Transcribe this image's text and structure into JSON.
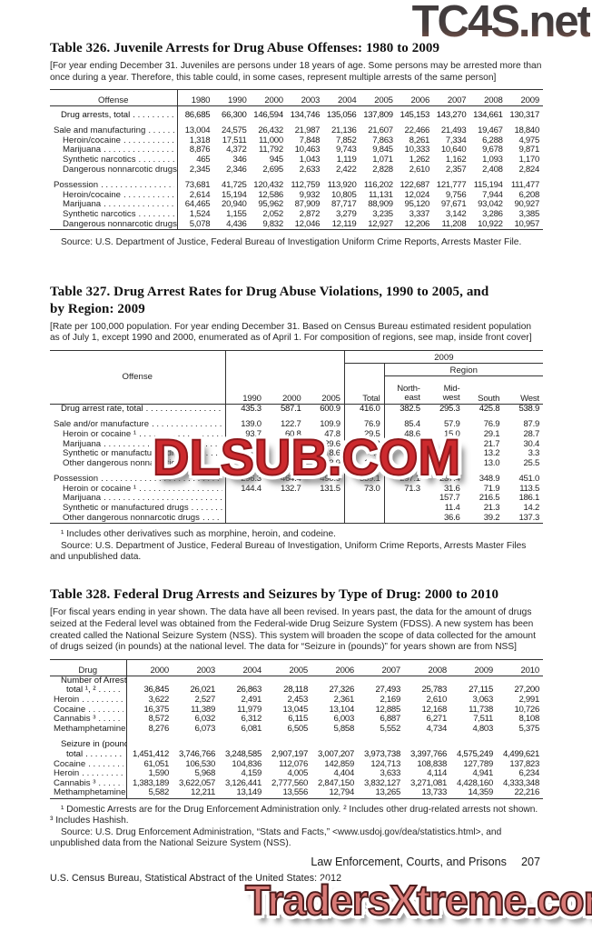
{
  "watermarks": {
    "top": "TC4S.net",
    "middle": "DLSUB.COM",
    "bottom": "TradersXtreme.com",
    "top_color": "#4a4142",
    "middle_color": "#cd2a2e",
    "bottom_color": "#d97a77"
  },
  "table326": {
    "title": "Table 326. Juvenile Arrests for Drug Abuse Offenses: 1980 to 2009",
    "note": "[For year ending December 31. Juveniles are persons under 18 years of age. Some persons may be arrested more than once during a year. Therefore, this table could, in some cases, represent multiple arrests of the same person]",
    "offense_header": "Offense",
    "years": [
      "1980",
      "1990",
      "2000",
      "2003",
      "2004",
      "2005",
      "2006",
      "2007",
      "2008",
      "2009"
    ],
    "rows": [
      {
        "label": "Drug arrests, total",
        "bold": true,
        "indent": 2,
        "values": [
          "86,685",
          "66,300",
          "146,594",
          "134,746",
          "135,056",
          "137,809",
          "145,153",
          "143,270",
          "134,661",
          "130,317"
        ]
      },
      {
        "spacer": true
      },
      {
        "label": "Sale and manufacturing",
        "indent": 0,
        "values": [
          "13,004",
          "24,575",
          "26,432",
          "21,987",
          "21,136",
          "21,607",
          "22,466",
          "21,493",
          "19,467",
          "18,840"
        ]
      },
      {
        "label": "Heroin/cocaine",
        "indent": 1,
        "values": [
          "1,318",
          "17,511",
          "11,000",
          "7,848",
          "7,852",
          "7,863",
          "8,261",
          "7,334",
          "6,288",
          "4,975"
        ]
      },
      {
        "label": "Marijuana",
        "indent": 1,
        "values": [
          "8,876",
          "4,372",
          "11,792",
          "10,463",
          "9,743",
          "9,845",
          "10,333",
          "10,640",
          "9,678",
          "9,871"
        ]
      },
      {
        "label": "Synthetic narcotics",
        "indent": 1,
        "values": [
          "465",
          "346",
          "945",
          "1,043",
          "1,119",
          "1,071",
          "1,262",
          "1,162",
          "1,093",
          "1,170"
        ]
      },
      {
        "label": "Dangerous nonnarcotic drugs",
        "indent": 1,
        "values": [
          "2,345",
          "2,346",
          "2,695",
          "2,633",
          "2,422",
          "2,828",
          "2,610",
          "2,357",
          "2,408",
          "2,824"
        ]
      },
      {
        "spacer": true
      },
      {
        "label": "Possession",
        "indent": 0,
        "values": [
          "73,681",
          "41,725",
          "120,432",
          "112,759",
          "113,920",
          "116,202",
          "122,687",
          "121,777",
          "115,194",
          "111,477"
        ]
      },
      {
        "label": "Heroin/cocaine",
        "indent": 1,
        "values": [
          "2,614",
          "15,194",
          "12,586",
          "9,932",
          "10,805",
          "11,131",
          "12,024",
          "9,756",
          "7,944",
          "6,208"
        ]
      },
      {
        "label": "Marijuana",
        "indent": 1,
        "values": [
          "64,465",
          "20,940",
          "95,962",
          "87,909",
          "87,717",
          "88,909",
          "95,120",
          "97,671",
          "93,042",
          "90,927"
        ]
      },
      {
        "label": "Synthetic narcotics",
        "indent": 1,
        "values": [
          "1,524",
          "1,155",
          "2,052",
          "2,872",
          "3,279",
          "3,235",
          "3,337",
          "3,142",
          "3,286",
          "3,385"
        ]
      },
      {
        "label": "Dangerous nonnarcotic drugs",
        "indent": 1,
        "values": [
          "5,078",
          "4,436",
          "9,832",
          "12,046",
          "12,119",
          "12,927",
          "12,206",
          "11,208",
          "10,922",
          "10,957"
        ]
      }
    ],
    "source": "Source: U.S. Department of Justice, Federal Bureau of Investigation Uniform Crime Reports, Arrests Master File."
  },
  "table327": {
    "title": "Table 327. Drug Arrest Rates for Drug Abuse Violations, 1990 to 2005, and\nby Region: 2009",
    "note": "[Rate per 100,000 population. For year ending December 31. Based on Census Bureau estimated resident population as of July 1, except 1990 and 2000, enumerated as of April 1. For composition of regions, see map, inside front cover]",
    "offense_header": "Offense",
    "group_2009": "2009",
    "group_region": "Region",
    "col_headers": [
      "1990",
      "2000",
      "2005",
      "Total",
      "North-\neast",
      "Mid-\nwest",
      "South",
      "West"
    ],
    "rows": [
      {
        "label": "Drug arrest rate, total",
        "bold": true,
        "indent": 2,
        "values": [
          "435.3",
          "587.1",
          "600.9",
          "416.0",
          "382.5",
          "295.3",
          "425.8",
          "538.9"
        ]
      },
      {
        "spacer": true
      },
      {
        "label": "Sale and/or manufacture",
        "indent": 0,
        "values": [
          "139.0",
          "122.7",
          "109.9",
          "76.9",
          "85.4",
          "57.9",
          "76.9",
          "87.9"
        ]
      },
      {
        "label": "Heroin or cocaine ¹",
        "indent": 1,
        "values": [
          "93.7",
          "60.8",
          "47.8",
          "29.5",
          "48.6",
          "15.0",
          "29.1",
          "28.7"
        ]
      },
      {
        "label": "Marijuana",
        "indent": 1,
        "values": [
          "26.4",
          "34.2",
          "29.6",
          "25.2",
          "24.4",
          "26.1",
          "21.7",
          "30.4"
        ]
      },
      {
        "label": "Synthetic or manufactured drugs",
        "indent": 1,
        "values": [
          "2.7",
          "6.4",
          "8.6",
          "7.5",
          "5.5",
          "3.9",
          "13.2",
          "3.3"
        ]
      },
      {
        "label": "Other dangerous nonnarcotic drugs",
        "indent": 1,
        "values": [
          "16.2",
          "21.3",
          "23.9",
          "14.8",
          "6.9",
          "12.9",
          "13.0",
          "25.5"
        ]
      },
      {
        "spacer": true
      },
      {
        "label": "Possession",
        "indent": 0,
        "values": [
          "296.3",
          "464.4",
          "490.9",
          "339.1",
          "297.1",
          "237.4",
          "348.9",
          "451.0"
        ]
      },
      {
        "label": "Heroin or cocaine ¹",
        "indent": 1,
        "values": [
          "144.4",
          "132.7",
          "131.5",
          "73.0",
          "71.3",
          "31.6",
          "71.9",
          "113.5"
        ]
      },
      {
        "label": "Marijuana",
        "indent": 1,
        "values": [
          "",
          "",
          "",
          "",
          "",
          "157.7",
          "216.5",
          "186.1"
        ]
      },
      {
        "label": "Synthetic or manufactured drugs",
        "indent": 1,
        "values": [
          "",
          "",
          "",
          "",
          "",
          "11.4",
          "21.3",
          "14.2"
        ]
      },
      {
        "label": "Other dangerous nonnarcotic drugs",
        "indent": 1,
        "values": [
          "",
          "",
          "",
          "",
          "",
          "36.6",
          "39.2",
          "137.3"
        ]
      }
    ],
    "footnote": "¹ Includes other derivatives such as morphine, heroin, and codeine.",
    "source": "Source: U.S. Department of Justice, Federal Bureau of Investigation, Uniform Crime Reports, Arrests Master Files and unpublished data."
  },
  "table328": {
    "title": "Table 328. Federal Drug Arrests and Seizures by Type of Drug: 2000 to 2010",
    "note": "[For fiscal years ending in year shown. The data have all been revised. In years past, the data for the amount of drugs seized at the Federal level was obtained from the Federal-wide Drug Seizure System (FDSS). A new system has been created called the National Seizure System (NSS). This system will broaden the scope of data collected for the amount of drugs seized (in pounds) at the national level.  The data for “Seizure in (pounds)” for years shown are from NSS]",
    "drug_header": "Drug",
    "years": [
      "2000",
      "2003",
      "2004",
      "2005",
      "2006",
      "2007",
      "2008",
      "2009",
      "2010"
    ],
    "rows": [
      {
        "lines": [
          "Number of Arrests,",
          "total ¹, ²"
        ],
        "bold": true,
        "indent": 2,
        "values": [
          "36,845",
          "26,021",
          "26,863",
          "28,118",
          "27,326",
          "27,493",
          "25,783",
          "27,115",
          "27,200"
        ]
      },
      {
        "label": "Heroin",
        "indent": 0,
        "values": [
          "3,622",
          "2,527",
          "2,491",
          "2,453",
          "2,361",
          "2,169",
          "2,610",
          "3,063",
          "2,991"
        ]
      },
      {
        "label": "Cocaine",
        "indent": 0,
        "values": [
          "16,375",
          "11,389",
          "11,979",
          "13,045",
          "13,104",
          "12,885",
          "12,168",
          "11,738",
          "10,726"
        ]
      },
      {
        "label": "Cannabis ³",
        "indent": 0,
        "values": [
          "8,572",
          "6,032",
          "6,312",
          "6,115",
          "6,003",
          "6,887",
          "6,271",
          "7,511",
          "8,108"
        ]
      },
      {
        "label": "Methamphetamine",
        "indent": 0,
        "values": [
          "8,276",
          "6,073",
          "6,081",
          "6,505",
          "5,858",
          "5,552",
          "4,734",
          "4,803",
          "5,375"
        ]
      },
      {
        "spacer": true
      },
      {
        "lines": [
          "Seizure in (pounds),",
          "total"
        ],
        "bold": true,
        "indent": 2,
        "values": [
          "1,451,412",
          "3,746,766",
          "3,248,585",
          "2,907,197",
          "3,007,207",
          "3,973,738",
          "3,397,766",
          "4,575,249",
          "4,499,621"
        ]
      },
      {
        "label": "Cocaine",
        "indent": 0,
        "values": [
          "61,051",
          "106,530",
          "104,836",
          "112,076",
          "142,859",
          "124,713",
          "108,838",
          "127,789",
          "137,823"
        ]
      },
      {
        "label": "Heroin",
        "indent": 0,
        "values": [
          "1,590",
          "5,968",
          "4,159",
          "4,005",
          "4,404",
          "3,633",
          "4,114",
          "4,941",
          "6,234"
        ]
      },
      {
        "label": "Cannabis ³",
        "indent": 0,
        "values": [
          "1,383,189",
          "3,622,057",
          "3,126,441",
          "2,777,560",
          "2,847,150",
          "3,832,127",
          "3,271,081",
          "4,428,160",
          "4,333,348"
        ]
      },
      {
        "label": "Methamphetamine",
        "indent": 0,
        "values": [
          "5,582",
          "12,211",
          "13,149",
          "13,556",
          "12,794",
          "13,265",
          "13,733",
          "14,359",
          "22,216"
        ]
      }
    ],
    "footnotes": "¹ Domestic Arrests are for the Drug Enforcement Administration only. ² Includes other drug-related arrests not shown. ³ Includes Hashish.",
    "source": "Source: U.S. Drug Enforcement Administration, “Stats and Facts,” <www.usdoj.gov/dea/statistics.html>, and unpublished data from the National Seizure System (NSS)."
  },
  "footer": {
    "section": "Law Enforcement, Courts, and Prisons",
    "page": "207",
    "credit": "U.S. Census Bureau, Statistical Abstract of the United States: 2012"
  }
}
